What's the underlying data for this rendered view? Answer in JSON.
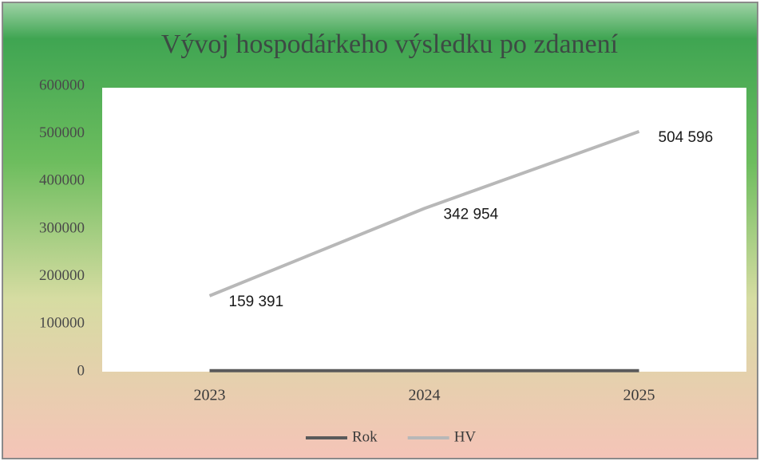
{
  "chart_data": {
    "type": "line",
    "title": "Vývoj hospodárkeho výsledku po zdanení",
    "categories": [
      "2023",
      "2024",
      "2025"
    ],
    "series": [
      {
        "name": "Rok",
        "color": "#5a5a5a",
        "values": [
          2023,
          2024,
          2025
        ]
      },
      {
        "name": "HV",
        "color": "#b8b8b8",
        "values": [
          159391,
          342954,
          504596
        ],
        "value_labels": [
          "159 391",
          "342 954",
          "504 596"
        ]
      }
    ],
    "ylim": [
      0,
      600000
    ],
    "yticks": [
      0,
      100000,
      200000,
      300000,
      400000,
      500000,
      600000
    ],
    "legend": "bottom"
  }
}
